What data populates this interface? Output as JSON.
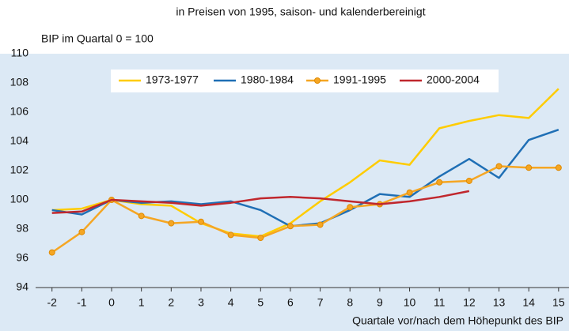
{
  "chart_data": {
    "type": "line",
    "subtitle": "in Preisen von 1995, saison- und kalenderbereinigt",
    "y_label": "BIP im Quartal 0 = 100",
    "x_label": "Quartale vor/nach dem Höhepunkt des BIP",
    "x": [
      -2,
      -1,
      0,
      1,
      2,
      3,
      4,
      5,
      6,
      7,
      8,
      9,
      10,
      11,
      12,
      13,
      14,
      15
    ],
    "series": [
      {
        "name": "1973-1977",
        "color": "#ffcc00",
        "values": [
          99.3,
          99.4,
          100.0,
          99.7,
          99.6,
          98.4,
          97.7,
          97.5,
          98.4,
          99.9,
          101.2,
          102.7,
          102.4,
          104.9,
          105.4,
          105.8,
          105.6,
          107.6
        ]
      },
      {
        "name": "1980-1984",
        "color": "#1f6fb5",
        "values": [
          99.3,
          99.0,
          100.0,
          99.8,
          99.9,
          99.7,
          99.9,
          99.3,
          98.2,
          98.4,
          99.3,
          100.4,
          100.2,
          101.6,
          102.8,
          101.5,
          104.1,
          104.8
        ]
      },
      {
        "name": "1991-1995",
        "color": "#f5a623",
        "marker": "circle",
        "values": [
          96.4,
          97.8,
          100.0,
          98.9,
          98.4,
          98.5,
          97.6,
          97.4,
          98.2,
          98.3,
          99.5,
          99.7,
          100.5,
          101.2,
          101.3,
          102.3,
          102.2,
          102.2
        ]
      },
      {
        "name": "2000-2004",
        "color": "#c0272d",
        "values": [
          99.1,
          99.2,
          100.0,
          99.9,
          99.8,
          99.6,
          99.8,
          100.1,
          100.2,
          100.1,
          99.9,
          99.7,
          99.9,
          100.2,
          100.6,
          null,
          null,
          null
        ]
      }
    ],
    "xlim": [
      -2.55,
      15.35
    ],
    "xticks": [
      -2,
      -1,
      0,
      1,
      2,
      3,
      4,
      5,
      6,
      7,
      8,
      9,
      10,
      11,
      12,
      13,
      14,
      15
    ],
    "ylim": [
      94,
      110
    ],
    "yticks": [
      94,
      96,
      98,
      100,
      102,
      104,
      106,
      108,
      110
    ],
    "grid": false,
    "legend": "top"
  }
}
